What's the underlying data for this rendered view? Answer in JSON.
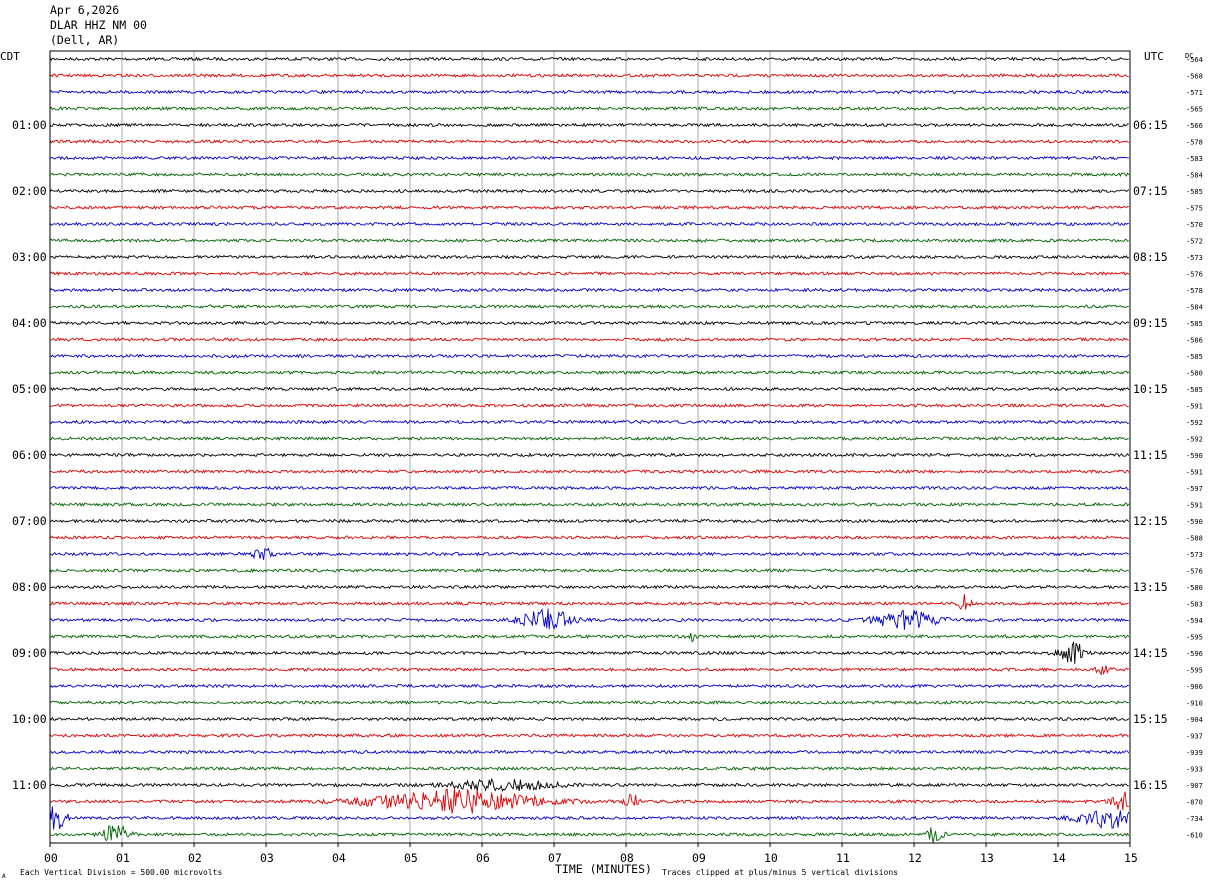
{
  "header": {
    "date": "Apr 6,2026",
    "station": "DLAR HHZ NM 00",
    "location": "(Dell, AR)"
  },
  "labels": {
    "left_tz": "CDT",
    "right_tz": "UTC",
    "dc": "DC",
    "xlabel": "TIME (MINUTES)",
    "footer_left": "Each Vertical Division =  500.00 microvolts",
    "footer_right": "Traces clipped at plus/minus 5 vertical divisions",
    "corner_mark": "A"
  },
  "colors": {
    "trace_cycle": [
      "#000000",
      "#dd0000",
      "#0000cc",
      "#006400"
    ],
    "grid": "#888888",
    "frame": "#000000"
  },
  "chart_data": {
    "type": "line",
    "chart_kind": "helicorder seismogram",
    "x": {
      "min": 0,
      "max": 15,
      "ticks": [
        "00",
        "01",
        "02",
        "03",
        "04",
        "05",
        "06",
        "07",
        "08",
        "09",
        "10",
        "11",
        "12",
        "13",
        "14",
        "15"
      ]
    },
    "rows": 48,
    "minutes_per_row": 15,
    "cdt_labels": [
      {
        "row": 4,
        "label": "01:00"
      },
      {
        "row": 8,
        "label": "02:00"
      },
      {
        "row": 12,
        "label": "03:00"
      },
      {
        "row": 16,
        "label": "04:00"
      },
      {
        "row": 20,
        "label": "05:00"
      },
      {
        "row": 24,
        "label": "06:00"
      },
      {
        "row": 28,
        "label": "07:00"
      },
      {
        "row": 32,
        "label": "08:00"
      },
      {
        "row": 36,
        "label": "09:00"
      },
      {
        "row": 40,
        "label": "10:00"
      },
      {
        "row": 44,
        "label": "11:00"
      }
    ],
    "utc_labels": [
      {
        "row": 4,
        "label": "06:15"
      },
      {
        "row": 8,
        "label": "07:15"
      },
      {
        "row": 12,
        "label": "08:15"
      },
      {
        "row": 16,
        "label": "09:15"
      },
      {
        "row": 20,
        "label": "10:15"
      },
      {
        "row": 24,
        "label": "11:15"
      },
      {
        "row": 28,
        "label": "12:15"
      },
      {
        "row": 32,
        "label": "13:15"
      },
      {
        "row": 36,
        "label": "14:15"
      },
      {
        "row": 40,
        "label": "15:15"
      },
      {
        "row": 44,
        "label": "16:15"
      }
    ],
    "dc_values": [
      "-564",
      "-568",
      "-571",
      "-565",
      "-566",
      "-578",
      "-583",
      "-584",
      "-585",
      "-575",
      "-570",
      "-572",
      "-573",
      "-576",
      "-578",
      "-584",
      "-585",
      "-586",
      "-585",
      "-580",
      "-585",
      "-591",
      "-592",
      "-592",
      "-590",
      "-591",
      "-597",
      "-591",
      "-590",
      "-588",
      "-573",
      "-576",
      "-580",
      "-583",
      "-594",
      "-595",
      "-596",
      "-595",
      "-906",
      "-910",
      "-904",
      "-937",
      "-939",
      "-933",
      "-907",
      "-870",
      "-734",
      "-610"
    ],
    "events": [
      {
        "row": 30,
        "minute": 2.95,
        "amplitude": 1.0,
        "width_min": 0.15
      },
      {
        "row": 33,
        "minute": 12.7,
        "amplitude": 1.0,
        "width_min": 0.12
      },
      {
        "row": 34,
        "minute": 6.9,
        "amplitude": 1.1,
        "width_min": 0.5
      },
      {
        "row": 34,
        "minute": 11.9,
        "amplitude": 1.0,
        "width_min": 0.6
      },
      {
        "row": 35,
        "minute": 8.9,
        "amplitude": 0.5,
        "width_min": 0.1
      },
      {
        "row": 36,
        "minute": 14.2,
        "amplitude": 1.3,
        "width_min": 0.25
      },
      {
        "row": 37,
        "minute": 14.6,
        "amplitude": 0.5,
        "width_min": 0.15
      },
      {
        "row": 44,
        "minute": 6.3,
        "amplitude": 0.6,
        "width_min": 1.0
      },
      {
        "row": 45,
        "minute": 5.6,
        "amplitude": 1.3,
        "width_min": 1.6
      },
      {
        "row": 45,
        "minute": 8.1,
        "amplitude": 1.0,
        "width_min": 0.15
      },
      {
        "row": 45,
        "minute": 14.9,
        "amplitude": 1.2,
        "width_min": 0.2
      },
      {
        "row": 46,
        "minute": 0.05,
        "amplitude": 1.4,
        "width_min": 0.25
      },
      {
        "row": 46,
        "minute": 14.7,
        "amplitude": 1.0,
        "width_min": 0.6
      },
      {
        "row": 47,
        "minute": 0.9,
        "amplitude": 1.4,
        "width_min": 0.25
      },
      {
        "row": 47,
        "minute": 12.3,
        "amplitude": 1.0,
        "width_min": 0.15
      }
    ]
  }
}
